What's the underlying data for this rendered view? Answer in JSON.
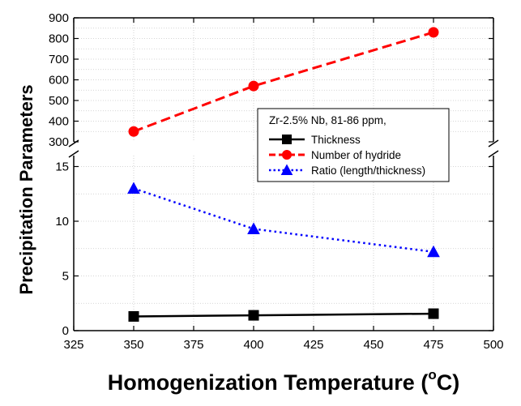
{
  "chart_data": {
    "type": "line",
    "xlabel": "Homogenization Temperature (",
    "xlabel_super": "o",
    "xlabel_suffix": "C)",
    "ylabel": "Precipitation Parameters",
    "xlim": [
      325,
      500
    ],
    "x_ticks": [
      "325",
      "350",
      "375",
      "400",
      "425",
      "450",
      "475",
      "500"
    ],
    "y_axis_broken": true,
    "upper_ylim": [
      300,
      900
    ],
    "upper_y_ticks": [
      "300",
      "400",
      "500",
      "600",
      "700",
      "800",
      "900"
    ],
    "lower_ylim": [
      0,
      16
    ],
    "lower_y_ticks": [
      "0",
      "5",
      "10",
      "15"
    ],
    "grid": true,
    "legend_title": "Zr-2.5% Nb, 81-86 ppm,",
    "legend_position": "center-right",
    "series": [
      {
        "name": "Thickness",
        "panel": "lower",
        "x": [
          350,
          400,
          475
        ],
        "values": [
          1.3,
          1.4,
          1.55
        ],
        "color": "#000000",
        "marker": "square",
        "line": "solid"
      },
      {
        "name": "Number of hydride",
        "panel": "upper",
        "x": [
          350,
          400,
          475
        ],
        "values": [
          350,
          570,
          830
        ],
        "color": "#ff0000",
        "marker": "circle",
        "line": "dashed"
      },
      {
        "name": "Ratio (length/thickness)",
        "panel": "lower",
        "x": [
          350,
          400,
          475
        ],
        "values": [
          13.0,
          9.3,
          7.2
        ],
        "color": "#0000ff",
        "marker": "triangle",
        "line": "dotted"
      }
    ]
  }
}
